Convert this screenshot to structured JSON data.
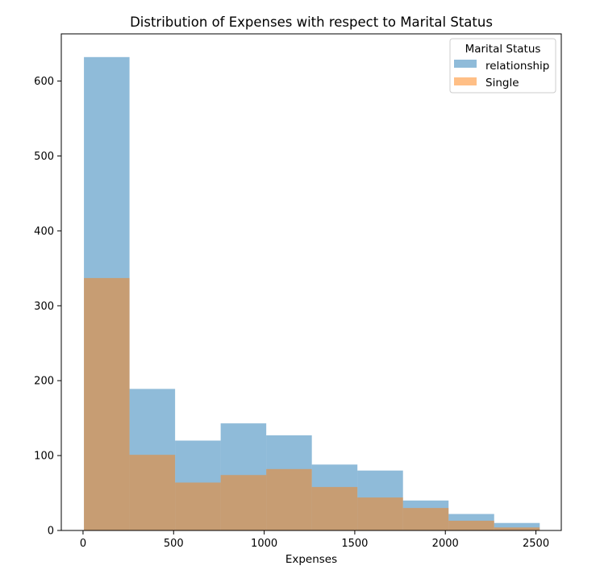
{
  "chart_data": {
    "type": "histogram",
    "title": "Distribution of Expenses with respect to Marital Status",
    "xlabel": "Expenses",
    "ylabel": "",
    "xlim": [
      -120,
      2640
    ],
    "ylim": [
      0,
      663
    ],
    "xticks": [
      0,
      500,
      1000,
      1500,
      2000,
      2500
    ],
    "yticks": [
      0,
      100,
      200,
      300,
      400,
      500,
      600
    ],
    "bin_edges": [
      5,
      256.6,
      508.2,
      759.8,
      1011.4,
      1263,
      1514.6,
      1766.2,
      2017.8,
      2269.4,
      2521
    ],
    "series": [
      {
        "name": "relationship",
        "color": "#1f77b4",
        "alpha": 0.5,
        "values": [
          632,
          189,
          120,
          143,
          127,
          88,
          80,
          40,
          22,
          10
        ]
      },
      {
        "name": "Single",
        "color": "#ff7f0e",
        "alpha": 0.5,
        "values": [
          337,
          101,
          64,
          74,
          82,
          58,
          44,
          30,
          13,
          4
        ]
      }
    ],
    "legend": {
      "title": "Marital Status",
      "placement": "top-right"
    }
  }
}
